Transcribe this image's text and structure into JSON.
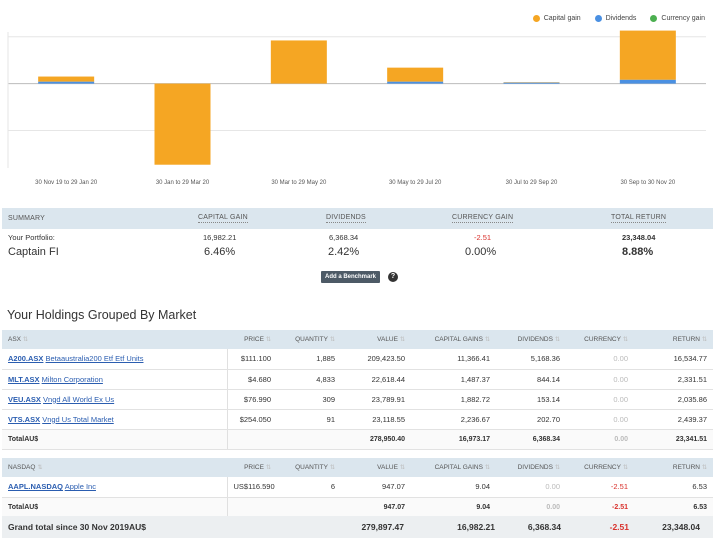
{
  "legend": [
    {
      "label": "Capital gain",
      "color": "#f5a623"
    },
    {
      "label": "Dividends",
      "color": "#4a90e2"
    },
    {
      "label": "Currency gain",
      "color": "#4caf50"
    }
  ],
  "chart_data": {
    "type": "bar",
    "categories": [
      "30 Nov 19 to 29 Jan 20",
      "30 Jan to 29 Mar 20",
      "30 Mar to 29 May 20",
      "30 May to 29 Jul 20",
      "30 Jul to 29 Sep 20",
      "30 Sep to 30 Nov 20"
    ],
    "series": [
      {
        "name": "Capital gain",
        "values": [
          0.11,
          -1.73,
          0.92,
          0.3,
          0.01,
          1.05
        ]
      },
      {
        "name": "Dividends",
        "values": [
          0.04,
          0.0,
          0.0,
          0.04,
          0.02,
          0.08
        ]
      },
      {
        "name": "Currency gain",
        "values": [
          0,
          0,
          0,
          0,
          0,
          0
        ]
      }
    ],
    "grid": true
  },
  "summary": {
    "headers": {
      "summary": "Summary",
      "capital_gain": "Capital gain",
      "dividends": "Dividends",
      "currency_gain": "Currency gain",
      "total_return": "Total return"
    },
    "portfolio_label": "Your Portfolio:",
    "portfolio_name": "Captain FI",
    "capital_gain_value": "16,982.21",
    "capital_gain_pct": "6.46%",
    "dividends_value": "6,368.34",
    "dividends_pct": "2.42%",
    "currency_value": "-2.51",
    "currency_pct": "0.00%",
    "total_value": "23,348.04",
    "total_pct": "8.88%",
    "benchmark_button": "Add a Benchmark",
    "help_glyph": "?"
  },
  "holdings": {
    "title": "Your Holdings Grouped By Market",
    "columns": {
      "price": "Price",
      "quantity": "Quantity",
      "value": "Value",
      "capital_gains": "Capital gains",
      "dividends": "Dividends",
      "currency": "Currency",
      "return": "Return"
    },
    "asx": {
      "market": "ASX",
      "rows": [
        {
          "code": "A200.ASX",
          "name": "Betaaustralia200 Etf Etf Units",
          "price": "$111.100",
          "quantity": "1,885",
          "value": "209,423.50",
          "capital_gains": "11,366.41",
          "dividends": "5,168.36",
          "currency": "0.00",
          "return": "16,534.77"
        },
        {
          "code": "MLT.ASX",
          "name": "Milton Corporation",
          "price": "$4.680",
          "quantity": "4,833",
          "value": "22,618.44",
          "capital_gains": "1,487.37",
          "dividends": "844.14",
          "currency": "0.00",
          "return": "2,331.51"
        },
        {
          "code": "VEU.ASX",
          "name": "Vngd All World Ex Us",
          "price": "$76.990",
          "quantity": "309",
          "value": "23,789.91",
          "capital_gains": "1,882.72",
          "dividends": "153.14",
          "currency": "0.00",
          "return": "2,035.86"
        },
        {
          "code": "VTS.ASX",
          "name": "Vngd Us Total Market",
          "price": "$254.050",
          "quantity": "91",
          "value": "23,118.55",
          "capital_gains": "2,236.67",
          "dividends": "202.70",
          "currency": "0.00",
          "return": "2,439.37"
        }
      ],
      "total_label": "TotalAU$",
      "total": {
        "value": "278,950.40",
        "capital_gains": "16,973.17",
        "dividends": "6,368.34",
        "currency": "0.00",
        "return": "23,341.51"
      }
    },
    "nasdaq": {
      "market": "NASDAQ",
      "rows": [
        {
          "code": "AAPL.NASDAQ",
          "name": "Apple Inc",
          "price": "US$116.590",
          "quantity": "6",
          "value": "947.07",
          "capital_gains": "9.04",
          "dividends": "0.00",
          "currency": "-2.51",
          "return": "6.53"
        }
      ],
      "total_label": "TotalAU$",
      "total": {
        "value": "947.07",
        "capital_gains": "9.04",
        "dividends": "0.00",
        "currency": "-2.51",
        "return": "6.53"
      }
    },
    "grand": {
      "label": "Grand total since 30 Nov 2019AU$",
      "value": "279,897.47",
      "capital_gains": "16,982.21",
      "dividends": "6,368.34",
      "currency": "-2.51",
      "return": "23,348.04"
    }
  }
}
